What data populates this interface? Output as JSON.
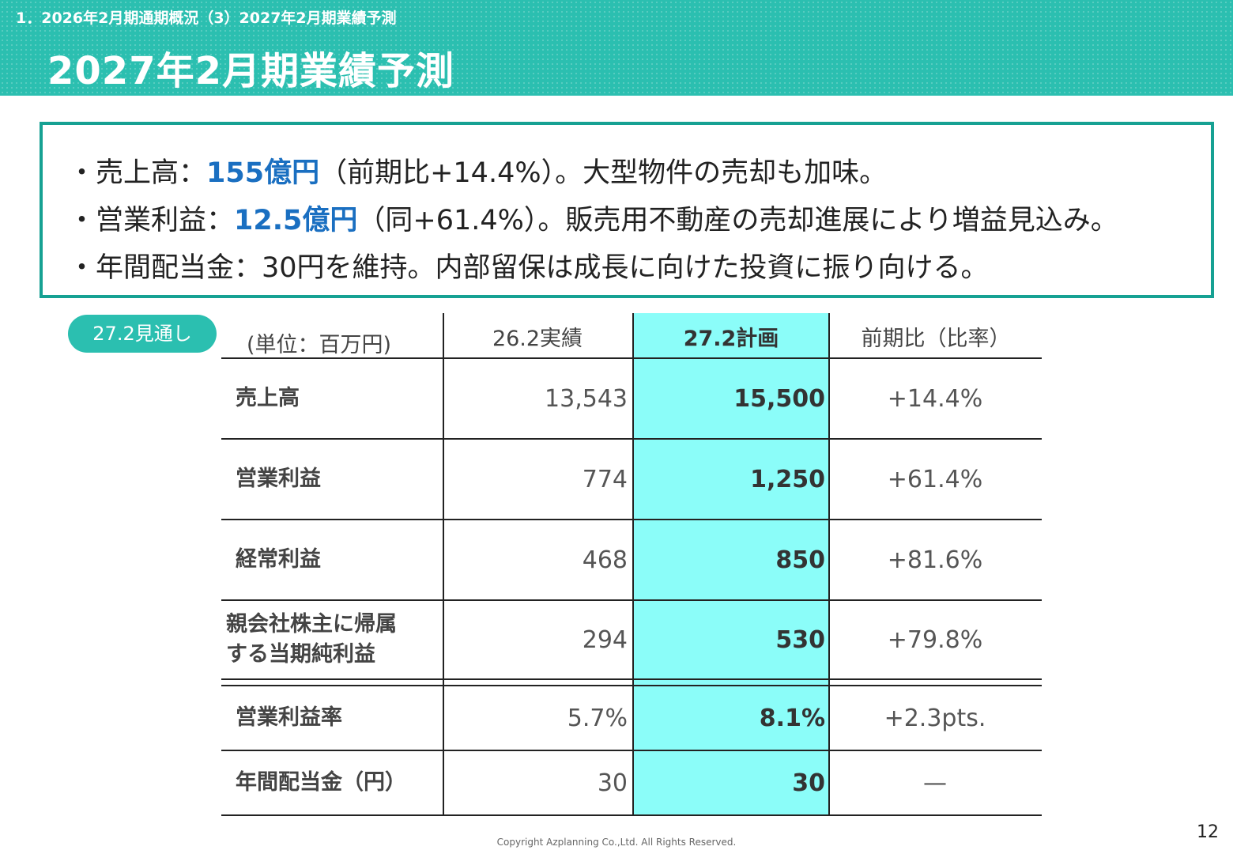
{
  "header": {
    "breadcrumb": "1．2026年2月期通期概況（3）2027年2月期業績予測",
    "title": "2027年2月期業績予測",
    "color": "#2bbfb0"
  },
  "summary": {
    "line1": {
      "prefix": "・売上高：",
      "highlight": "155億円",
      "suffix": "（前期比+14.4%）。大型物件の売却も加味。"
    },
    "line2": {
      "prefix": "・営業利益：",
      "highlight": "12.5億円",
      "suffix": "（同+61.4%）。販売用不動産の売却進展により増益見込み。"
    },
    "line3": {
      "text": "・年間配当金：30円を維持。内部留保は成長に向けた投資に振り向ける。"
    },
    "highlight_color": "#1a6fc1",
    "border_color": "#16a193"
  },
  "badge": "27.2見通し",
  "table": {
    "headers": {
      "unit": "(単位：百万円)",
      "actual": "26.2実績",
      "plan": "27.2計画",
      "yoy": "前期比（比率）"
    },
    "plan_column_color": "#8bfdf9",
    "rows": [
      {
        "label": "売上高",
        "actual": "13,543",
        "plan": "15,500",
        "yoy": "+14.4%"
      },
      {
        "label": "営業利益",
        "actual": "774",
        "plan": "1,250",
        "yoy": "+61.4%"
      },
      {
        "label": "経常利益",
        "actual": "468",
        "plan": "850",
        "yoy": "+81.6%"
      },
      {
        "label_line1": "親会社株主に帰属",
        "label_line2": "する当期純利益",
        "actual": "294",
        "plan": "530",
        "yoy": "+79.8%"
      },
      {
        "label": "営業利益率",
        "actual": "5.7%",
        "plan": "8.1%",
        "yoy": "+2.3pts."
      },
      {
        "label": "年間配当金（円）",
        "actual": "30",
        "plan": "30",
        "yoy": "—"
      }
    ]
  },
  "footer": {
    "copyright": "Copyright Azplanning Co.,Ltd. All Rights Reserved.",
    "page_number": "12"
  }
}
